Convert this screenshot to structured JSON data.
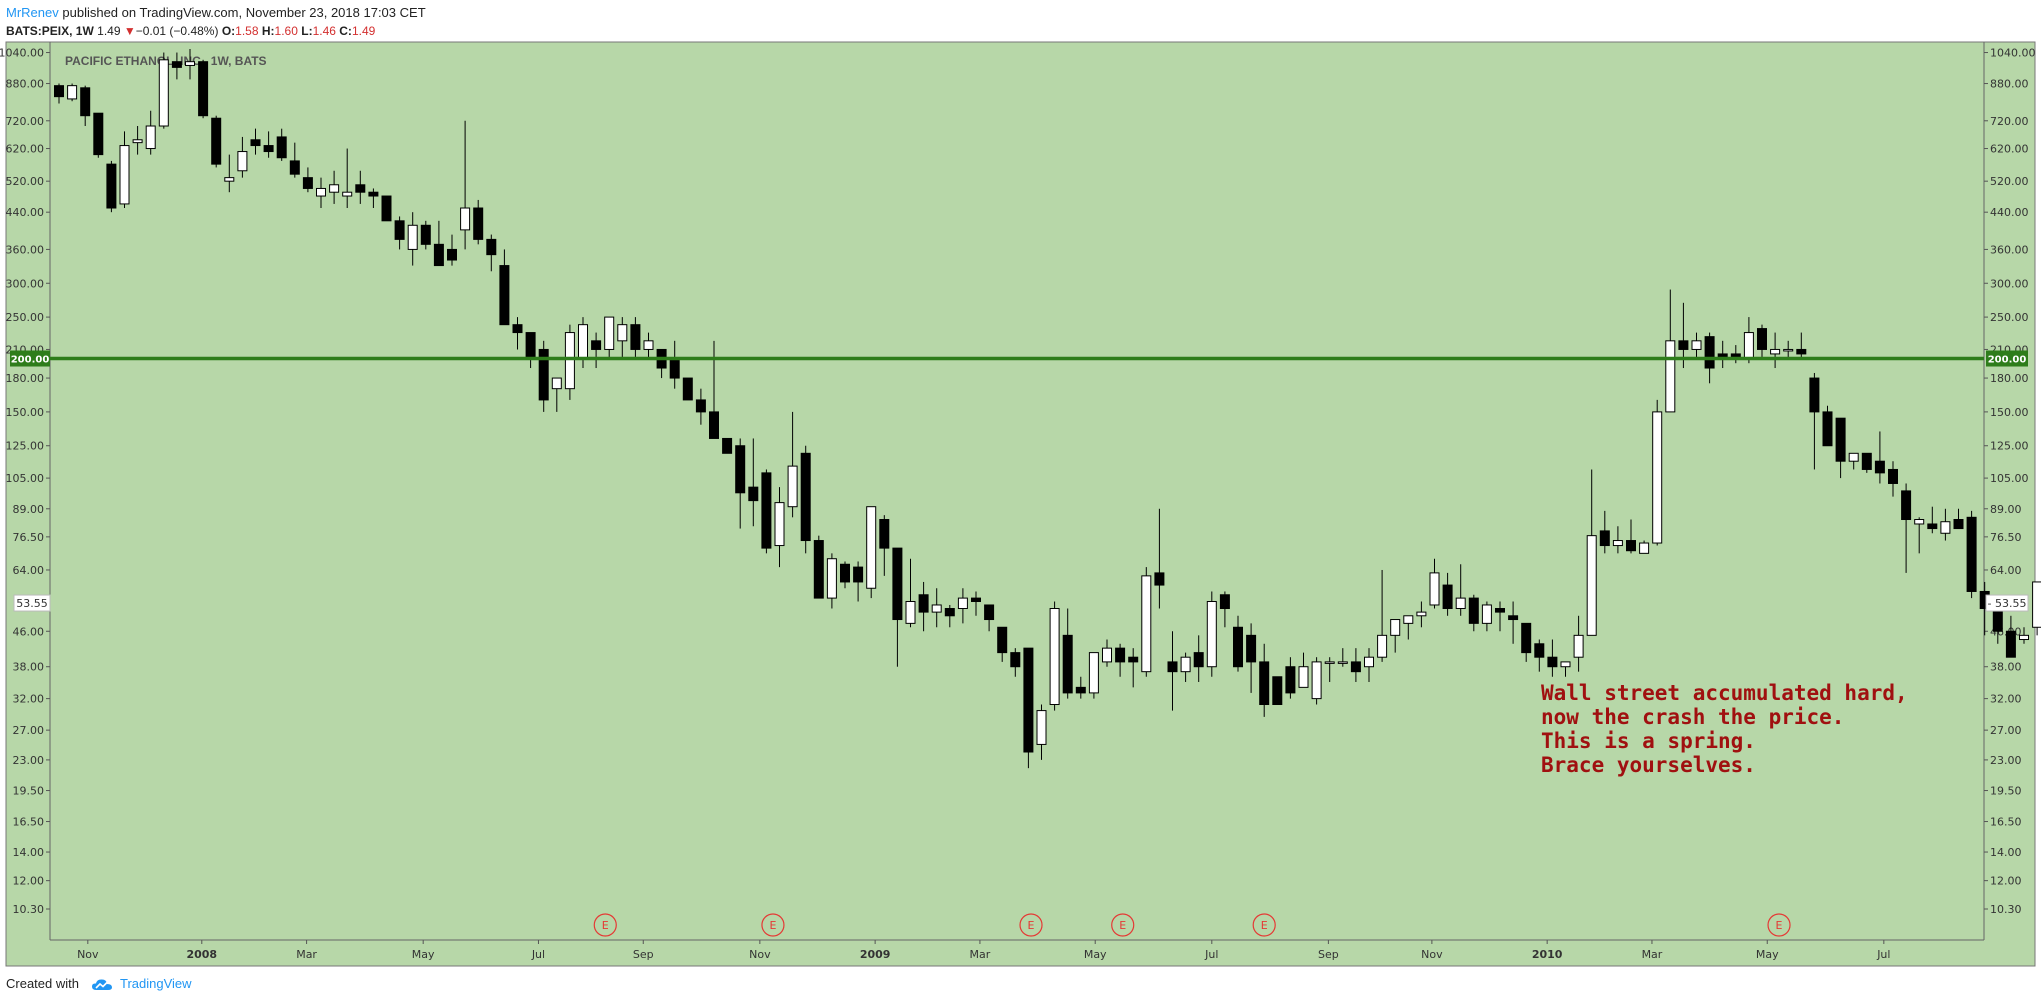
{
  "header": {
    "author": "MrRenev",
    "published": "published on TradingView.com, November 23, 2018 17:03 CET",
    "symbol": "BATS:PEIX, 1W",
    "last": "1.49",
    "change_arrow": "▼",
    "change": "−0.01 (−0.48%)",
    "o_label": "O:",
    "o_value": "1.58",
    "h_label": "H:",
    "h_value": "1.60",
    "l_label": "L:",
    "l_value": "1.46",
    "c_label": "C:",
    "c_value": "1.49"
  },
  "footer": {
    "created_with": "Created with",
    "brand": "TradingView"
  },
  "colors": {
    "background": "#b7d7a8",
    "hline": "#2e7d1b",
    "candle_up": "#ffffff",
    "candle_down": "#000000",
    "annotation": "#a01010",
    "earnings": "#e53935"
  },
  "chart_data": {
    "type": "candlestick",
    "title": "PACIFIC ETHANOL, INC., 1W, BATS",
    "scale": "log",
    "ylim": [
      9.5,
      1060
    ],
    "y_ticks": [
      1040,
      880,
      720,
      620,
      520,
      440,
      360,
      300,
      250,
      210,
      180,
      150,
      125,
      105,
      89,
      76.5,
      64,
      53.55,
      46,
      38,
      32,
      27,
      23,
      19.5,
      16.5,
      14,
      12,
      10.3
    ],
    "y_tick_labels": [
      "1040.00",
      "880.00",
      "720.00",
      "620.00",
      "520.00",
      "440.00",
      "360.00",
      "300.00",
      "250.00",
      "210.00",
      "180.00",
      "150.00",
      "125.00",
      "105.00",
      "89.00",
      "76.50",
      "64.00",
      "53.55",
      "46.00",
      "38.00",
      "32.00",
      "27.00",
      "23.00",
      "19.50",
      "16.50",
      "14.00",
      "12.00",
      "10.30"
    ],
    "x_ticks": [
      {
        "label": "Nov",
        "bar": 2.2,
        "bold": false
      },
      {
        "label": "2008",
        "bar": 10.9,
        "bold": true
      },
      {
        "label": "Mar",
        "bar": 18.9,
        "bold": false
      },
      {
        "label": "May",
        "bar": 27.8,
        "bold": false
      },
      {
        "label": "Jul",
        "bar": 36.6,
        "bold": false
      },
      {
        "label": "Sep",
        "bar": 44.6,
        "bold": false
      },
      {
        "label": "Nov",
        "bar": 53.5,
        "bold": false
      },
      {
        "label": "2009",
        "bar": 62.3,
        "bold": true
      },
      {
        "label": "Mar",
        "bar": 70.3,
        "bold": false
      },
      {
        "label": "May",
        "bar": 79.1,
        "bold": false
      },
      {
        "label": "Jul",
        "bar": 88.0,
        "bold": false
      },
      {
        "label": "Sep",
        "bar": 96.9,
        "bold": false
      },
      {
        "label": "Nov",
        "bar": 104.8,
        "bold": false
      },
      {
        "label": "2010",
        "bar": 113.6,
        "bold": true
      },
      {
        "label": "Mar",
        "bar": 121.6,
        "bold": false
      },
      {
        "label": "May",
        "bar": 130.4,
        "bold": false
      },
      {
        "label": "Jul",
        "bar": 139.3,
        "bold": false
      }
    ],
    "earnings_label": "E",
    "earnings_bars": [
      41.7,
      54.5,
      74.2,
      81.2,
      92.0,
      131.3
    ],
    "hline": {
      "value": 200,
      "label": "200.00"
    },
    "last_price": {
      "value": 53.55,
      "label": "53.55"
    },
    "annotation": [
      "Wall street accumulated hard,",
      "now the crash the price.",
      "This is a spring.",
      "Brace yourselves."
    ],
    "ohlc": [
      [
        870,
        880,
        790,
        820
      ],
      [
        810,
        880,
        800,
        870
      ],
      [
        860,
        870,
        700,
        740
      ],
      [
        750,
        750,
        590,
        600
      ],
      [
        570,
        580,
        440,
        450
      ],
      [
        460,
        680,
        450,
        630
      ],
      [
        640,
        700,
        600,
        650
      ],
      [
        620,
        760,
        600,
        700
      ],
      [
        700,
        1040,
        690,
        1000
      ],
      [
        990,
        1040,
        900,
        960
      ],
      [
        970,
        1060,
        900,
        990
      ],
      [
        990,
        1000,
        730,
        740
      ],
      [
        730,
        740,
        560,
        570
      ],
      [
        520,
        600,
        490,
        530
      ],
      [
        550,
        660,
        530,
        610
      ],
      [
        650,
        690,
        600,
        630
      ],
      [
        630,
        680,
        590,
        610
      ],
      [
        660,
        690,
        580,
        590
      ],
      [
        580,
        640,
        530,
        540
      ],
      [
        530,
        560,
        490,
        500
      ],
      [
        480,
        530,
        450,
        500
      ],
      [
        490,
        550,
        460,
        510
      ],
      [
        480,
        620,
        450,
        490
      ],
      [
        510,
        550,
        460,
        490
      ],
      [
        490,
        500,
        450,
        480
      ],
      [
        480,
        480,
        420,
        420
      ],
      [
        420,
        430,
        360,
        380
      ],
      [
        360,
        440,
        330,
        410
      ],
      [
        410,
        420,
        360,
        370
      ],
      [
        370,
        420,
        340,
        330
      ],
      [
        360,
        390,
        330,
        340
      ],
      [
        400,
        720,
        360,
        450
      ],
      [
        450,
        470,
        370,
        380
      ],
      [
        380,
        390,
        320,
        350
      ],
      [
        330,
        360,
        240,
        240
      ],
      [
        240,
        250,
        210,
        230
      ],
      [
        230,
        230,
        190,
        200
      ],
      [
        210,
        220,
        150,
        160
      ],
      [
        170,
        180,
        150,
        180
      ],
      [
        170,
        240,
        160,
        230
      ],
      [
        200,
        250,
        190,
        240
      ],
      [
        220,
        230,
        190,
        210
      ],
      [
        210,
        250,
        200,
        250
      ],
      [
        220,
        250,
        200,
        240
      ],
      [
        240,
        250,
        200,
        210
      ],
      [
        210,
        230,
        200,
        220
      ],
      [
        210,
        210,
        180,
        190
      ],
      [
        200,
        220,
        170,
        180
      ],
      [
        180,
        180,
        160,
        160
      ],
      [
        160,
        170,
        140,
        150
      ],
      [
        150,
        220,
        140,
        130
      ],
      [
        130,
        130,
        120,
        120
      ],
      [
        125,
        130,
        80,
        97
      ],
      [
        100,
        130,
        81,
        93
      ],
      [
        108,
        110,
        70,
        72
      ],
      [
        73,
        100,
        65,
        92
      ],
      [
        90,
        150,
        85,
        112
      ],
      [
        120,
        125,
        70,
        75
      ],
      [
        75,
        77,
        56,
        55
      ],
      [
        55,
        70,
        52,
        68
      ],
      [
        66,
        67,
        58,
        60
      ],
      [
        65,
        67,
        54,
        60
      ],
      [
        58,
        90,
        55,
        90
      ],
      [
        84,
        86,
        62,
        72
      ],
      [
        72,
        72,
        38,
        49
      ],
      [
        48,
        68,
        47,
        54
      ],
      [
        56,
        60,
        46,
        51
      ],
      [
        51,
        58,
        47,
        53
      ],
      [
        52,
        53,
        47,
        50
      ],
      [
        52,
        58,
        48,
        55
      ],
      [
        55,
        57,
        50,
        54
      ],
      [
        53,
        53,
        46,
        49
      ],
      [
        47,
        47,
        39,
        41
      ],
      [
        41,
        42,
        36,
        38
      ],
      [
        42,
        42,
        22,
        24
      ],
      [
        25,
        31,
        23,
        30
      ],
      [
        31,
        54,
        30,
        52
      ],
      [
        45,
        52,
        32,
        33
      ],
      [
        34,
        36,
        32,
        33
      ],
      [
        33,
        41,
        32,
        41
      ],
      [
        39,
        44,
        38,
        42
      ],
      [
        42,
        43,
        36,
        39
      ],
      [
        40,
        42,
        34,
        39
      ],
      [
        37,
        65,
        36,
        62
      ],
      [
        63,
        89,
        52,
        59
      ],
      [
        39,
        46,
        30,
        37
      ],
      [
        37,
        41,
        35,
        40
      ],
      [
        41,
        45,
        35,
        38
      ],
      [
        38,
        57,
        36,
        54
      ],
      [
        56,
        57,
        47,
        52
      ],
      [
        47,
        50,
        37,
        38
      ],
      [
        45,
        48,
        33,
        39
      ],
      [
        39,
        43,
        29,
        31
      ],
      [
        36,
        36,
        31,
        31
      ],
      [
        38,
        40,
        32,
        33
      ],
      [
        34,
        41,
        34,
        38
      ],
      [
        32,
        40,
        31,
        39
      ],
      [
        39,
        40,
        35,
        39
      ],
      [
        39,
        42,
        38,
        39
      ],
      [
        39,
        42,
        35,
        37
      ],
      [
        38,
        42,
        35,
        40
      ],
      [
        40,
        64,
        39,
        45
      ],
      [
        45,
        48,
        41,
        49
      ],
      [
        48,
        50,
        44,
        50
      ],
      [
        50,
        54,
        47,
        51
      ],
      [
        53,
        68,
        52,
        63
      ],
      [
        59,
        63,
        50,
        52
      ],
      [
        52,
        66,
        50,
        55
      ],
      [
        55,
        56,
        46,
        48
      ],
      [
        48,
        54,
        46,
        53
      ],
      [
        52,
        54,
        46,
        51
      ],
      [
        50,
        54,
        43,
        49
      ],
      [
        48,
        48,
        39,
        41
      ],
      [
        43,
        44,
        37,
        40
      ],
      [
        40,
        44,
        36,
        38
      ],
      [
        38,
        38,
        36,
        39
      ],
      [
        40,
        50,
        37,
        45
      ],
      [
        45,
        110,
        45,
        77
      ],
      [
        79,
        88,
        70,
        73
      ],
      [
        73,
        81,
        70,
        75
      ],
      [
        75,
        84,
        70,
        71
      ],
      [
        70,
        75,
        70,
        74
      ],
      [
        74,
        160,
        73,
        150
      ],
      [
        150,
        290,
        160,
        220
      ],
      [
        220,
        270,
        190,
        210
      ],
      [
        210,
        230,
        200,
        220
      ],
      [
        225,
        230,
        175,
        190
      ],
      [
        205,
        220,
        190,
        200
      ],
      [
        205,
        215,
        195,
        200
      ],
      [
        200,
        250,
        195,
        230
      ],
      [
        235,
        240,
        200,
        210
      ],
      [
        205,
        230,
        190,
        210
      ],
      [
        210,
        220,
        200,
        210
      ],
      [
        210,
        230,
        200,
        205
      ],
      [
        180,
        185,
        110,
        150
      ],
      [
        150,
        155,
        125,
        125
      ],
      [
        145,
        145,
        105,
        115
      ],
      [
        115,
        120,
        110,
        120
      ],
      [
        120,
        120,
        108,
        110
      ],
      [
        115,
        135,
        102,
        108
      ],
      [
        110,
        115,
        95,
        102
      ],
      [
        98,
        102,
        63,
        84
      ],
      [
        82,
        85,
        70,
        84
      ],
      [
        82,
        90,
        78,
        80
      ],
      [
        78,
        89,
        75,
        83
      ],
      [
        84,
        89,
        80,
        80
      ],
      [
        85,
        88,
        55,
        57
      ],
      [
        57,
        60,
        45,
        52
      ],
      [
        52,
        54,
        43,
        46
      ],
      [
        46,
        50,
        40,
        40
      ],
      [
        44,
        47,
        43,
        45
      ],
      [
        47,
        60,
        45,
        60
      ],
      [
        62,
        65,
        48,
        52
      ],
      [
        52,
        60,
        48,
        56
      ]
    ]
  }
}
